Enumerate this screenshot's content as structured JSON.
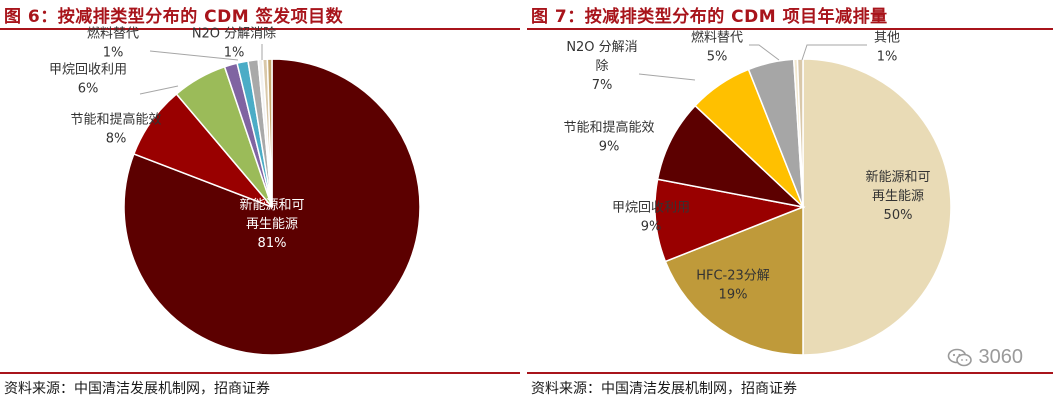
{
  "left_panel": {
    "title": "图 6：按减排类型分布的 CDM 签发项目数",
    "source": "资料来源：中国清洁发展机制网，招商证券"
  },
  "right_panel": {
    "title": "图 7：按减排类型分布的 CDM 项目年减排量",
    "source": "资料来源：中国清洁发展机制网，招商证券"
  },
  "watermark": {
    "text": "3060",
    "icon": "wechat-icon"
  },
  "chart_data": [
    {
      "type": "pie",
      "title": "图 6：按减排类型分布的 CDM 签发项目数",
      "start_angle_deg": 0,
      "direction": "clockwise",
      "slices": [
        {
          "label_lines": [
            "新能源和可",
            "再生能源",
            "81%"
          ],
          "value": 81,
          "color": "#5c0000",
          "label_color": "#ffffff"
        },
        {
          "label_lines": [
            "节能和提高能效",
            "8%"
          ],
          "value": 8,
          "color": "#990000",
          "label_color": "#333333"
        },
        {
          "label_lines": [
            "甲烷回收利用",
            "6%"
          ],
          "value": 6,
          "color": "#9bbb59",
          "label_color": "#333333"
        },
        {
          "label_lines": [
            "燃料替代",
            "1%"
          ],
          "value": 1.4,
          "color": "#8064a2",
          "label_color": "#333333"
        },
        {
          "label_lines": [],
          "value": 1.2,
          "color": "#4bacc6",
          "label_color": "#333333"
        },
        {
          "label_lines": [
            "N2O 分解消除",
            "1%"
          ],
          "value": 1.1,
          "color": "#a9a9a9",
          "label_color": "#333333"
        },
        {
          "label_lines": [],
          "value": 0.5,
          "color": "#f2f2f2",
          "label_color": "#333333"
        },
        {
          "label_lines": [],
          "value": 0.5,
          "color": "#d9c8a9",
          "label_color": "#333333"
        },
        {
          "label_lines": [],
          "value": 0.5,
          "color": "#c4a76e",
          "label_color": "#333333"
        }
      ]
    },
    {
      "type": "pie",
      "title": "图 7：按减排类型分布的 CDM 项目年减排量",
      "start_angle_deg": 0,
      "direction": "clockwise",
      "slices": [
        {
          "label_lines": [
            "新能源和可",
            "再生能源",
            "50%"
          ],
          "value": 50,
          "color": "#e9dbb6",
          "label_color": "#333333"
        },
        {
          "label_lines": [
            "HFC-23分解",
            "19%"
          ],
          "value": 19,
          "color": "#bf9a3a",
          "label_color": "#333333"
        },
        {
          "label_lines": [
            "甲烷回收利用",
            "9%"
          ],
          "value": 9,
          "color": "#990000",
          "label_color": "#333333"
        },
        {
          "label_lines": [
            "节能和提高能效",
            "9%"
          ],
          "value": 9,
          "color": "#5c0000",
          "label_color": "#333333"
        },
        {
          "label_lines": [
            "N2O 分解消",
            "除",
            "7%"
          ],
          "value": 7,
          "color": "#ffc000",
          "label_color": "#333333"
        },
        {
          "label_lines": [
            "燃料替代",
            "5%"
          ],
          "value": 5,
          "color": "#a6a6a6",
          "label_color": "#333333"
        },
        {
          "label_lines": [],
          "value": 0.4,
          "color": "#f2e8d0",
          "label_color": "#333333"
        },
        {
          "label_lines": [
            "其他",
            "1%"
          ],
          "value": 0.6,
          "color": "#d9c8a9",
          "label_color": "#333333"
        }
      ]
    }
  ]
}
